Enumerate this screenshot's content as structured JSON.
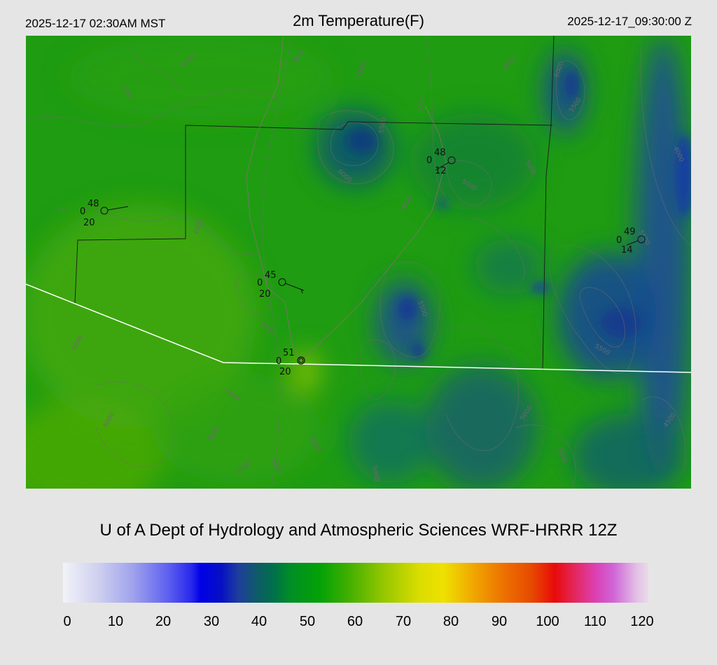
{
  "header": {
    "local_time": "2025-12-17 02:30AM MST",
    "title": "2m Temperature(F)",
    "utc_time": "2025-12-17_09:30:00 Z"
  },
  "credit": "U of A Dept of Hydrology and Atmospheric Sciences WRF-HRRR 12Z",
  "colorbar": {
    "ticks": [
      "0",
      "10",
      "20",
      "30",
      "40",
      "50",
      "60",
      "70",
      "80",
      "90",
      "100",
      "110",
      "120"
    ]
  },
  "stations": [
    {
      "temp": "48",
      "dew": "20",
      "gust": "0"
    },
    {
      "temp": "45",
      "dew": "20",
      "gust": "0"
    },
    {
      "temp": "51",
      "dew": "20",
      "gust": "0"
    },
    {
      "temp": "48",
      "dew": "12",
      "gust": "0"
    },
    {
      "temp": "49",
      "dew": "14",
      "gust": "0"
    }
  ],
  "contour_labels": [
    "3000",
    "4500",
    "5000",
    "5500",
    "6000",
    "4000"
  ],
  "colors": {
    "background": "#e5e5e5",
    "map_base": "#1f9c12",
    "boundary": "#ffffff"
  }
}
